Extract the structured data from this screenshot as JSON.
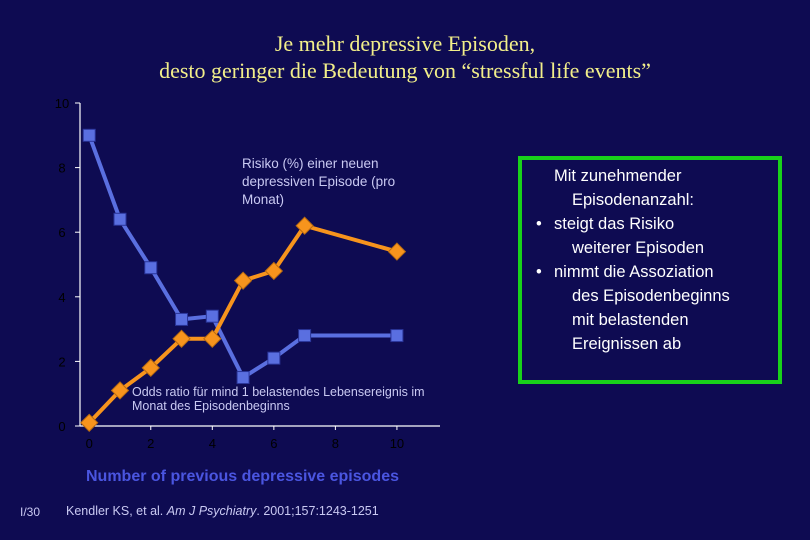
{
  "slide": {
    "title_line1": "Je mehr depressive Episoden,",
    "title_line2": "desto geringer die Bedeutung von “stressful life events”",
    "slide_number": "I/30",
    "citation_prefix": "Kendler KS, et al. ",
    "citation_journal": "Am J Psychiatry",
    "citation_suffix": ". 2001;157:1243-1251"
  },
  "infobox": {
    "lead_line1": "Mit zunehmender",
    "lead_line2": "Episodenanzahl:",
    "bullets": [
      {
        "line1": "steigt das Risiko",
        "line2": "weiterer Episoden"
      },
      {
        "line1": "nimmt die Assoziation",
        "line2": "des Episodenbeginns",
        "line3": "mit belastenden",
        "line4": "Ereignissen ab"
      }
    ],
    "bullet_glyph": "•",
    "border_color": "#19d11a"
  },
  "chart_data": {
    "type": "line",
    "xlabel": "Number of previous depressive episodes",
    "ylabel": "",
    "xlim": [
      -0.3,
      11.4
    ],
    "ylim": [
      0,
      10
    ],
    "xticks": [
      "0",
      "2",
      "4",
      "6",
      "8",
      "10"
    ],
    "yticks": [
      "0",
      "2",
      "4",
      "6",
      "8",
      "10"
    ],
    "grid": false,
    "series": [
      {
        "name": "Risiko (%) einer neuen depressiven Episode (pro Monat)",
        "label_lines": [
          "Risiko (%) einer neuen",
          "depressiven Episode (pro",
          "Monat)"
        ],
        "color": "#5a6fe0",
        "marker": "square",
        "points": [
          {
            "x": 0,
            "y": 9.0
          },
          {
            "x": 1,
            "y": 6.4
          },
          {
            "x": 2,
            "y": 4.9
          },
          {
            "x": 3,
            "y": 3.3
          },
          {
            "x": 4,
            "y": 3.4
          },
          {
            "x": 5,
            "y": 1.5
          },
          {
            "x": 6,
            "y": 2.1
          },
          {
            "x": 7,
            "y": 2.8
          },
          {
            "x": 10,
            "y": 2.8
          }
        ]
      },
      {
        "name": "Odds ratio für mind 1 belastendes Lebensereignis im Monat des Episodenbeginns",
        "label_lines": [
          "Odds ratio für mind 1 belastendes Lebensereignis im",
          "Monat des Episodenbeginns"
        ],
        "color": "#f7941d",
        "marker": "diamond",
        "points": [
          {
            "x": 0,
            "y": 0.1
          },
          {
            "x": 1,
            "y": 1.1
          },
          {
            "x": 2,
            "y": 1.8
          },
          {
            "x": 3,
            "y": 2.7
          },
          {
            "x": 4,
            "y": 2.7
          },
          {
            "x": 5,
            "y": 4.5
          },
          {
            "x": 6,
            "y": 4.8
          },
          {
            "x": 7,
            "y": 6.2
          },
          {
            "x": 10,
            "y": 5.4
          }
        ]
      }
    ]
  }
}
